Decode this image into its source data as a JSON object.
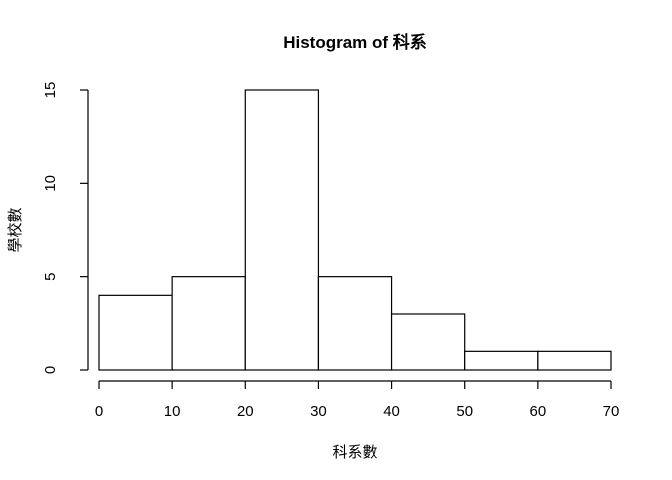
{
  "chart_data": {
    "type": "bar",
    "title": "Histogram of 科系",
    "xlabel": "科系數",
    "ylabel": "學校數",
    "bins": [
      {
        "from": 0,
        "to": 10,
        "count": 4
      },
      {
        "from": 10,
        "to": 20,
        "count": 5
      },
      {
        "from": 20,
        "to": 30,
        "count": 15
      },
      {
        "from": 30,
        "to": 40,
        "count": 5
      },
      {
        "from": 40,
        "to": 50,
        "count": 3
      },
      {
        "from": 50,
        "to": 60,
        "count": 1
      },
      {
        "from": 60,
        "to": 70,
        "count": 1
      }
    ],
    "x_ticks": [
      "0",
      "10",
      "20",
      "30",
      "40",
      "50",
      "60",
      "70"
    ],
    "y_ticks": [
      "0",
      "5",
      "10",
      "15"
    ],
    "xlim": [
      0,
      70
    ],
    "ylim": [
      0,
      15
    ],
    "grid": false,
    "legend": "none"
  }
}
